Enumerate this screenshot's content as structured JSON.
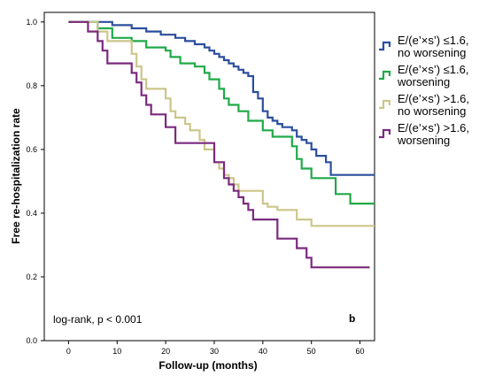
{
  "chart_data": {
    "type": "line",
    "step": true,
    "xlabel": "Follow-up (months)",
    "ylabel": "Free re-hospitalization rate",
    "xlim": [
      -5,
      63
    ],
    "ylim": [
      0.0,
      1.03
    ],
    "xticks": [
      "0",
      "10",
      "20",
      "30",
      "40",
      "50",
      "60"
    ],
    "yticks": [
      "0.0",
      "0.2",
      "0.4",
      "0.6",
      "0.8",
      "1.0"
    ],
    "annotation": "log-rank, p < 0.001",
    "panel_label": "b",
    "legend_position": "right",
    "series": [
      {
        "name_lines": [
          "E/(e’×s’) ≤1.6,",
          "no worsening"
        ],
        "color": "#2b4f9e",
        "points": [
          [
            0,
            1.0
          ],
          [
            9,
            1.0
          ],
          [
            9,
            0.99
          ],
          [
            13,
            0.99
          ],
          [
            13,
            0.98
          ],
          [
            16,
            0.98
          ],
          [
            16,
            0.97
          ],
          [
            19,
            0.97
          ],
          [
            19,
            0.96
          ],
          [
            22,
            0.96
          ],
          [
            22,
            0.95
          ],
          [
            24,
            0.95
          ],
          [
            24,
            0.94
          ],
          [
            26,
            0.94
          ],
          [
            26,
            0.93
          ],
          [
            28,
            0.93
          ],
          [
            28,
            0.92
          ],
          [
            29,
            0.92
          ],
          [
            29,
            0.91
          ],
          [
            30,
            0.91
          ],
          [
            30,
            0.9
          ],
          [
            31,
            0.9
          ],
          [
            31,
            0.89
          ],
          [
            32,
            0.89
          ],
          [
            32,
            0.88
          ],
          [
            33,
            0.88
          ],
          [
            33,
            0.87
          ],
          [
            34,
            0.87
          ],
          [
            34,
            0.86
          ],
          [
            35,
            0.86
          ],
          [
            35,
            0.85
          ],
          [
            36,
            0.85
          ],
          [
            36,
            0.84
          ],
          [
            37,
            0.84
          ],
          [
            37,
            0.83
          ],
          [
            38,
            0.83
          ],
          [
            38,
            0.78
          ],
          [
            39,
            0.78
          ],
          [
            39,
            0.76
          ],
          [
            40,
            0.76
          ],
          [
            40,
            0.72
          ],
          [
            41,
            0.72
          ],
          [
            41,
            0.7
          ],
          [
            42,
            0.7
          ],
          [
            42,
            0.69
          ],
          [
            43,
            0.69
          ],
          [
            43,
            0.68
          ],
          [
            44,
            0.68
          ],
          [
            44,
            0.67
          ],
          [
            46,
            0.67
          ],
          [
            46,
            0.66
          ],
          [
            47,
            0.66
          ],
          [
            47,
            0.64
          ],
          [
            48,
            0.64
          ],
          [
            48,
            0.63
          ],
          [
            49,
            0.63
          ],
          [
            49,
            0.62
          ],
          [
            50,
            0.62
          ],
          [
            50,
            0.6
          ],
          [
            51,
            0.6
          ],
          [
            51,
            0.58
          ],
          [
            53,
            0.58
          ],
          [
            53,
            0.56
          ],
          [
            54,
            0.56
          ],
          [
            54,
            0.52
          ],
          [
            63,
            0.52
          ]
        ]
      },
      {
        "name_lines": [
          "E/(e’×s’) ≤1.6,",
          "worsening"
        ],
        "color": "#1faa48",
        "points": [
          [
            0,
            1.0
          ],
          [
            6,
            1.0
          ],
          [
            6,
            0.98
          ],
          [
            9,
            0.98
          ],
          [
            9,
            0.95
          ],
          [
            13,
            0.95
          ],
          [
            13,
            0.94
          ],
          [
            16,
            0.94
          ],
          [
            16,
            0.92
          ],
          [
            20,
            0.92
          ],
          [
            20,
            0.91
          ],
          [
            21,
            0.91
          ],
          [
            21,
            0.89
          ],
          [
            23,
            0.89
          ],
          [
            23,
            0.87
          ],
          [
            26,
            0.87
          ],
          [
            26,
            0.86
          ],
          [
            28,
            0.86
          ],
          [
            28,
            0.84
          ],
          [
            29,
            0.84
          ],
          [
            29,
            0.82
          ],
          [
            31,
            0.82
          ],
          [
            31,
            0.79
          ],
          [
            32,
            0.79
          ],
          [
            32,
            0.76
          ],
          [
            33,
            0.76
          ],
          [
            33,
            0.74
          ],
          [
            35,
            0.74
          ],
          [
            35,
            0.72
          ],
          [
            37,
            0.72
          ],
          [
            37,
            0.69
          ],
          [
            40,
            0.69
          ],
          [
            40,
            0.66
          ],
          [
            42,
            0.66
          ],
          [
            42,
            0.64
          ],
          [
            46,
            0.64
          ],
          [
            46,
            0.61
          ],
          [
            47,
            0.61
          ],
          [
            47,
            0.57
          ],
          [
            48,
            0.57
          ],
          [
            48,
            0.54
          ],
          [
            50,
            0.54
          ],
          [
            50,
            0.51
          ],
          [
            55,
            0.51
          ],
          [
            55,
            0.46
          ],
          [
            58,
            0.46
          ],
          [
            58,
            0.43
          ],
          [
            63,
            0.43
          ]
        ]
      },
      {
        "name_lines": [
          "E/(e’×s’) >1.6,",
          "no worsening"
        ],
        "color": "#ccc68a",
        "points": [
          [
            0,
            1.0
          ],
          [
            6,
            1.0
          ],
          [
            6,
            0.97
          ],
          [
            8,
            0.97
          ],
          [
            8,
            0.94
          ],
          [
            13,
            0.94
          ],
          [
            13,
            0.9
          ],
          [
            14,
            0.9
          ],
          [
            14,
            0.86
          ],
          [
            15,
            0.86
          ],
          [
            15,
            0.82
          ],
          [
            16,
            0.82
          ],
          [
            16,
            0.79
          ],
          [
            20,
            0.79
          ],
          [
            20,
            0.76
          ],
          [
            21,
            0.76
          ],
          [
            21,
            0.72
          ],
          [
            22,
            0.72
          ],
          [
            22,
            0.7
          ],
          [
            24,
            0.7
          ],
          [
            24,
            0.68
          ],
          [
            25,
            0.68
          ],
          [
            25,
            0.66
          ],
          [
            27,
            0.66
          ],
          [
            27,
            0.63
          ],
          [
            28,
            0.63
          ],
          [
            28,
            0.6
          ],
          [
            30,
            0.6
          ],
          [
            30,
            0.56
          ],
          [
            31,
            0.56
          ],
          [
            31,
            0.54
          ],
          [
            32,
            0.54
          ],
          [
            32,
            0.52
          ],
          [
            33,
            0.52
          ],
          [
            33,
            0.51
          ],
          [
            34,
            0.51
          ],
          [
            34,
            0.49
          ],
          [
            35,
            0.49
          ],
          [
            35,
            0.47
          ],
          [
            40,
            0.47
          ],
          [
            40,
            0.43
          ],
          [
            41,
            0.43
          ],
          [
            41,
            0.42
          ],
          [
            43,
            0.42
          ],
          [
            43,
            0.41
          ],
          [
            47,
            0.41
          ],
          [
            47,
            0.38
          ],
          [
            50,
            0.38
          ],
          [
            50,
            0.36
          ],
          [
            63,
            0.36
          ]
        ]
      },
      {
        "name_lines": [
          "E/(e’×s’) >1.6,",
          "worsening"
        ],
        "color": "#7b2a7e",
        "points": [
          [
            0,
            1.0
          ],
          [
            4,
            1.0
          ],
          [
            4,
            0.97
          ],
          [
            6,
            0.97
          ],
          [
            6,
            0.94
          ],
          [
            7,
            0.94
          ],
          [
            7,
            0.91
          ],
          [
            8,
            0.91
          ],
          [
            8,
            0.87
          ],
          [
            13,
            0.87
          ],
          [
            13,
            0.84
          ],
          [
            14,
            0.84
          ],
          [
            14,
            0.81
          ],
          [
            15,
            0.81
          ],
          [
            15,
            0.77
          ],
          [
            16,
            0.77
          ],
          [
            16,
            0.74
          ],
          [
            17,
            0.74
          ],
          [
            17,
            0.71
          ],
          [
            20,
            0.71
          ],
          [
            20,
            0.67
          ],
          [
            22,
            0.67
          ],
          [
            22,
            0.62
          ],
          [
            30,
            0.62
          ],
          [
            30,
            0.56
          ],
          [
            32,
            0.56
          ],
          [
            32,
            0.51
          ],
          [
            33,
            0.51
          ],
          [
            33,
            0.49
          ],
          [
            34,
            0.49
          ],
          [
            34,
            0.47
          ],
          [
            35,
            0.47
          ],
          [
            35,
            0.45
          ],
          [
            36,
            0.45
          ],
          [
            36,
            0.43
          ],
          [
            37,
            0.43
          ],
          [
            37,
            0.41
          ],
          [
            38,
            0.41
          ],
          [
            38,
            0.38
          ],
          [
            43,
            0.38
          ],
          [
            43,
            0.32
          ],
          [
            47,
            0.32
          ],
          [
            47,
            0.29
          ],
          [
            49,
            0.29
          ],
          [
            49,
            0.26
          ],
          [
            50,
            0.26
          ],
          [
            50,
            0.23
          ],
          [
            62,
            0.23
          ]
        ]
      }
    ]
  }
}
